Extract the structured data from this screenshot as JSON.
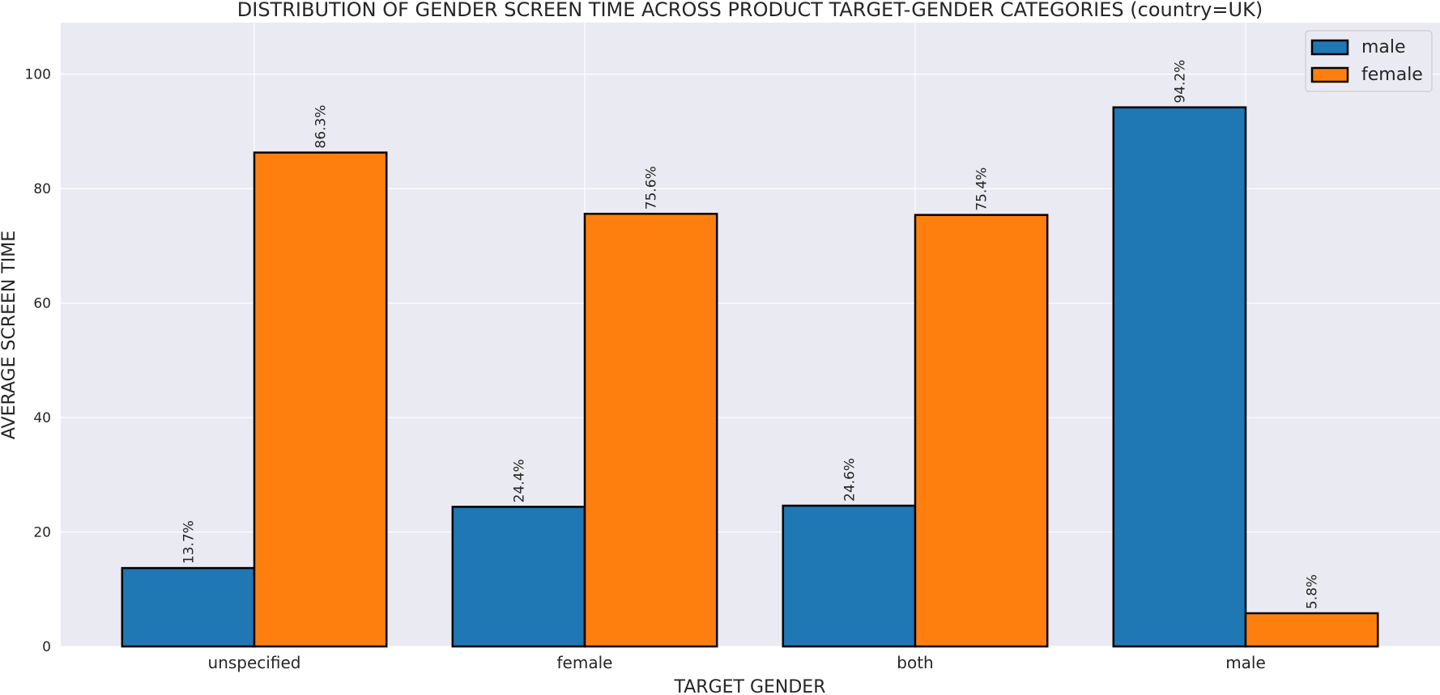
{
  "chart_data": {
    "type": "bar",
    "title": "DISTRIBUTION OF GENDER SCREEN TIME ACROSS PRODUCT TARGET-GENDER CATEGORIES (country=UK)",
    "xlabel": "TARGET GENDER",
    "ylabel": "AVERAGE SCREEN TIME",
    "categories": [
      "unspecified",
      "female",
      "both",
      "male"
    ],
    "series": [
      {
        "name": "male",
        "values": [
          13.7,
          24.4,
          24.6,
          94.2
        ],
        "labels": [
          "13.7%",
          "24.4%",
          "24.6%",
          "94.2%"
        ],
        "color": "#1f77b4"
      },
      {
        "name": "female",
        "values": [
          86.3,
          75.6,
          75.4,
          5.8
        ],
        "labels": [
          "86.3%",
          "75.6%",
          "75.4%",
          "5.8%"
        ],
        "color": "#ff7f0e"
      }
    ],
    "ylim": [
      0,
      109
    ],
    "yticks": [
      0,
      20,
      40,
      60,
      80,
      100
    ],
    "grid": true,
    "legend_position": "top-right",
    "background": "#eaeaf2",
    "bar_edge_color": "#000000"
  }
}
